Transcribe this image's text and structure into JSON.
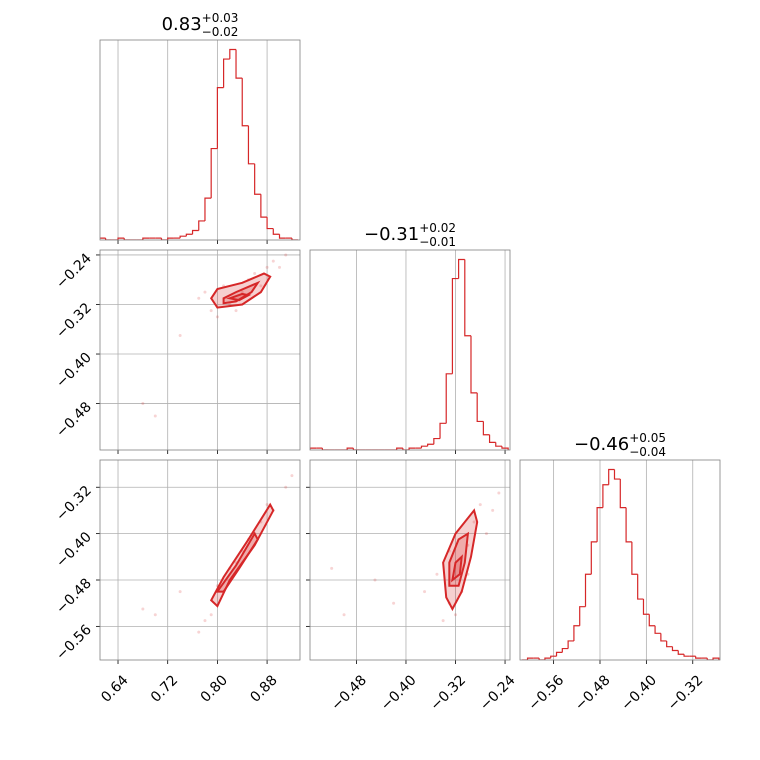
{
  "chart_data": [
    {
      "type": "histogram",
      "title": "0.83",
      "title_upper": "+0.03",
      "title_lower": "−0.02",
      "color": "#d62728",
      "grid": true,
      "xlim": [
        0.611,
        0.933
      ],
      "ylim": [
        0,
        105
      ],
      "xticks": [
        0.64,
        0.72,
        0.8,
        0.88
      ],
      "bins": [
        0.61,
        0.62,
        0.63,
        0.64,
        0.65,
        0.66,
        0.67,
        0.68,
        0.69,
        0.7,
        0.71,
        0.72,
        0.73,
        0.74,
        0.75,
        0.76,
        0.77,
        0.78,
        0.79,
        0.8,
        0.81,
        0.82,
        0.83,
        0.84,
        0.85,
        0.86,
        0.87,
        0.88,
        0.89,
        0.9,
        0.91,
        0.92,
        0.93
      ],
      "counts": [
        1,
        0,
        0,
        1,
        0,
        0,
        0,
        1,
        1,
        1,
        0,
        1,
        1,
        2,
        3,
        5,
        10,
        22,
        48,
        80,
        95,
        100,
        85,
        60,
        40,
        24,
        12,
        6,
        3,
        1,
        1,
        0
      ]
    },
    {
      "type": "scatter",
      "color": "#d62728",
      "grid": true,
      "xlim": [
        0.611,
        0.933
      ],
      "ylim": [
        -0.555,
        -0.232
      ],
      "xticks": [
        0.64,
        0.72,
        0.8,
        0.88
      ],
      "yticks": [
        {
          "value": -0.48,
          "label": "−0.48"
        },
        {
          "value": -0.4,
          "label": "−0.40"
        },
        {
          "value": -0.32,
          "label": "−0.32"
        },
        {
          "value": -0.24,
          "label": "−0.24"
        }
      ],
      "points": {
        "x": [
          0.68,
          0.7,
          0.74,
          0.77,
          0.79,
          0.8,
          0.81,
          0.83,
          0.85,
          0.86,
          0.88,
          0.89,
          0.9,
          0.91,
          0.82,
          0.84,
          0.87,
          0.78
        ],
        "y": [
          -0.48,
          -0.5,
          -0.37,
          -0.31,
          -0.33,
          -0.34,
          -0.29,
          -0.33,
          -0.28,
          -0.27,
          -0.26,
          -0.25,
          -0.26,
          -0.24,
          -0.32,
          -0.3,
          -0.29,
          -0.3
        ]
      },
      "contours": [
        {
          "x": [
            0.79,
            0.8,
            0.84,
            0.875,
            0.885,
            0.87,
            0.84,
            0.8
          ],
          "y": [
            -0.31,
            -0.295,
            -0.285,
            -0.27,
            -0.275,
            -0.3,
            -0.32,
            -0.325
          ]
        },
        {
          "x": [
            0.81,
            0.83,
            0.865,
            0.855,
            0.83,
            0.81
          ],
          "y": [
            -0.31,
            -0.3,
            -0.285,
            -0.3,
            -0.315,
            -0.318
          ]
        },
        {
          "x": [
            0.82,
            0.84,
            0.85,
            0.835
          ],
          "y": [
            -0.31,
            -0.303,
            -0.305,
            -0.313
          ]
        }
      ]
    },
    {
      "type": "histogram",
      "title": "−0.31",
      "title_upper": "+0.02",
      "title_lower": "−0.01",
      "color": "#d62728",
      "grid": true,
      "xlim": [
        -0.555,
        -0.232
      ],
      "ylim": [
        0,
        105
      ],
      "xticks": [
        -0.48,
        -0.4,
        -0.32,
        -0.24
      ],
      "bins": [
        -0.555,
        -0.545,
        -0.535,
        -0.525,
        -0.515,
        -0.505,
        -0.495,
        -0.485,
        -0.475,
        -0.465,
        -0.455,
        -0.445,
        -0.435,
        -0.425,
        -0.415,
        -0.405,
        -0.395,
        -0.385,
        -0.375,
        -0.365,
        -0.355,
        -0.345,
        -0.335,
        -0.325,
        -0.315,
        -0.305,
        -0.295,
        -0.285,
        -0.275,
        -0.265,
        -0.255,
        -0.245,
        -0.235
      ],
      "counts": [
        1,
        1,
        0,
        0,
        0,
        0,
        1,
        0,
        0,
        0,
        0,
        0,
        0,
        0,
        1,
        0,
        1,
        1,
        2,
        3,
        6,
        14,
        40,
        90,
        100,
        60,
        30,
        15,
        8,
        4,
        2,
        1
      ]
    },
    {
      "type": "scatter",
      "color": "#d62728",
      "grid": true,
      "xlim": [
        0.611,
        0.933
      ],
      "ylim": [
        -0.618,
        -0.273
      ],
      "xticks": [
        {
          "value": 0.64,
          "label": "0.64"
        },
        {
          "value": 0.72,
          "label": "0.72"
        },
        {
          "value": 0.8,
          "label": "0.80"
        },
        {
          "value": 0.88,
          "label": "0.88"
        }
      ],
      "yticks": [
        {
          "value": -0.56,
          "label": "−0.56"
        },
        {
          "value": -0.48,
          "label": "−0.48"
        },
        {
          "value": -0.4,
          "label": "−0.40"
        },
        {
          "value": -0.32,
          "label": "−0.32"
        }
      ],
      "points": {
        "x": [
          0.68,
          0.7,
          0.74,
          0.77,
          0.78,
          0.79,
          0.81,
          0.83,
          0.84,
          0.86,
          0.87,
          0.89,
          0.91,
          0.92,
          0.8,
          0.82,
          0.85,
          0.88
        ],
        "y": [
          -0.53,
          -0.54,
          -0.5,
          -0.57,
          -0.55,
          -0.54,
          -0.5,
          -0.45,
          -0.43,
          -0.4,
          -0.38,
          -0.36,
          -0.32,
          -0.3,
          -0.49,
          -0.46,
          -0.41,
          -0.35
        ]
      },
      "contours": [
        {
          "x": [
            0.79,
            0.81,
            0.85,
            0.885,
            0.89,
            0.86,
            0.82,
            0.8
          ],
          "y": [
            -0.515,
            -0.475,
            -0.41,
            -0.35,
            -0.36,
            -0.42,
            -0.48,
            -0.525
          ]
        },
        {
          "x": [
            0.8,
            0.83,
            0.86,
            0.865,
            0.835,
            0.81
          ],
          "y": [
            -0.5,
            -0.455,
            -0.4,
            -0.41,
            -0.46,
            -0.5
          ]
        }
      ]
    },
    {
      "type": "scatter",
      "color": "#d62728",
      "grid": true,
      "xlim": [
        -0.555,
        -0.232
      ],
      "ylim": [
        -0.618,
        -0.273
      ],
      "xticks": [
        {
          "value": -0.48,
          "label": "−0.48"
        },
        {
          "value": -0.4,
          "label": "−0.40"
        },
        {
          "value": -0.32,
          "label": "−0.32"
        },
        {
          "value": -0.24,
          "label": "−0.24"
        }
      ],
      "yticks": [
        -0.56,
        -0.48,
        -0.4,
        -0.32
      ],
      "points": {
        "x": [
          -0.52,
          -0.5,
          -0.45,
          -0.42,
          -0.37,
          -0.35,
          -0.34,
          -0.33,
          -0.32,
          -0.31,
          -0.3,
          -0.29,
          -0.28,
          -0.26,
          -0.25,
          -0.33,
          -0.3,
          -0.27
        ],
        "y": [
          -0.46,
          -0.54,
          -0.48,
          -0.52,
          -0.5,
          -0.47,
          -0.55,
          -0.52,
          -0.54,
          -0.5,
          -0.42,
          -0.38,
          -0.35,
          -0.36,
          -0.33,
          -0.43,
          -0.47,
          -0.4
        ]
      },
      "contours": [
        {
          "x": [
            -0.335,
            -0.34,
            -0.32,
            -0.29,
            -0.285,
            -0.295,
            -0.31,
            -0.325
          ],
          "y": [
            -0.51,
            -0.45,
            -0.4,
            -0.36,
            -0.38,
            -0.44,
            -0.5,
            -0.53
          ]
        },
        {
          "x": [
            -0.33,
            -0.33,
            -0.315,
            -0.3,
            -0.305,
            -0.315
          ],
          "y": [
            -0.49,
            -0.45,
            -0.41,
            -0.4,
            -0.45,
            -0.49
          ]
        },
        {
          "x": [
            -0.325,
            -0.32,
            -0.31,
            -0.313
          ],
          "y": [
            -0.48,
            -0.45,
            -0.44,
            -0.47
          ]
        }
      ]
    },
    {
      "type": "histogram",
      "title": "−0.46",
      "title_upper": "+0.05",
      "title_lower": "−0.04",
      "color": "#d62728",
      "grid": true,
      "xlim": [
        -0.618,
        -0.273
      ],
      "ylim": [
        0,
        105
      ],
      "xticks": [
        {
          "value": -0.56,
          "label": "−0.56"
        },
        {
          "value": -0.48,
          "label": "−0.48"
        },
        {
          "value": -0.4,
          "label": "−0.40"
        },
        {
          "value": -0.32,
          "label": "−0.32"
        }
      ],
      "bins": [
        -0.615,
        -0.605,
        -0.595,
        -0.585,
        -0.575,
        -0.565,
        -0.555,
        -0.545,
        -0.535,
        -0.525,
        -0.515,
        -0.505,
        -0.495,
        -0.485,
        -0.475,
        -0.465,
        -0.455,
        -0.445,
        -0.435,
        -0.425,
        -0.415,
        -0.405,
        -0.395,
        -0.385,
        -0.375,
        -0.365,
        -0.355,
        -0.345,
        -0.335,
        -0.325,
        -0.315,
        -0.305,
        -0.295,
        -0.285,
        -0.275
      ],
      "counts": [
        0,
        1,
        1,
        0,
        1,
        2,
        4,
        6,
        10,
        18,
        28,
        45,
        62,
        80,
        92,
        100,
        95,
        80,
        62,
        45,
        32,
        24,
        18,
        14,
        10,
        7,
        5,
        3,
        2,
        2,
        1,
        1,
        0,
        1
      ]
    }
  ]
}
